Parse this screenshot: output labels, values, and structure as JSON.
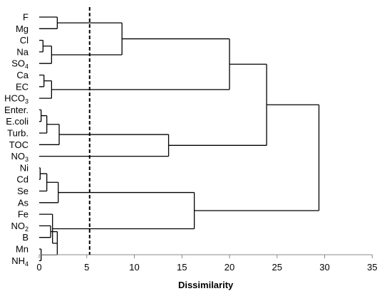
{
  "chart_data": {
    "type": "dendrogram",
    "title": "",
    "xlabel": "Dissimilarity",
    "xlim": [
      0,
      35
    ],
    "x_ticks": [
      "0",
      "5",
      "10",
      "15",
      "20",
      "25",
      "30",
      "35"
    ],
    "cut_line": 5.3,
    "leaves": [
      {
        "id": "F",
        "label": "F",
        "sub": ""
      },
      {
        "id": "Mg",
        "label": "Mg",
        "sub": ""
      },
      {
        "id": "Cl",
        "label": "Cl",
        "sub": ""
      },
      {
        "id": "Na",
        "label": "Na",
        "sub": ""
      },
      {
        "id": "SO4",
        "label": "SO",
        "sub": "4"
      },
      {
        "id": "Ca",
        "label": "Ca",
        "sub": ""
      },
      {
        "id": "EC",
        "label": "EC",
        "sub": ""
      },
      {
        "id": "HCO3",
        "label": "HCO",
        "sub": "3"
      },
      {
        "id": "Enter",
        "label": "Enter.",
        "sub": ""
      },
      {
        "id": "Ecoli",
        "label": "E.coli",
        "sub": ""
      },
      {
        "id": "Turb",
        "label": "Turb.",
        "sub": ""
      },
      {
        "id": "TOC",
        "label": "TOC",
        "sub": ""
      },
      {
        "id": "NO3",
        "label": "NO",
        "sub": "3"
      },
      {
        "id": "Ni",
        "label": "Ni",
        "sub": ""
      },
      {
        "id": "Cd",
        "label": "Cd",
        "sub": ""
      },
      {
        "id": "Se",
        "label": "Se",
        "sub": ""
      },
      {
        "id": "As",
        "label": "As",
        "sub": ""
      },
      {
        "id": "Fe",
        "label": "Fe",
        "sub": ""
      },
      {
        "id": "NO2",
        "label": "NO",
        "sub": "2"
      },
      {
        "id": "B",
        "label": "B",
        "sub": ""
      },
      {
        "id": "Mn",
        "label": "Mn",
        "sub": ""
      },
      {
        "id": "NH4",
        "label": "NH",
        "sub": "4"
      }
    ],
    "merges": [
      {
        "id": "m1",
        "children": [
          "F",
          "Mg"
        ],
        "height": 1.9
      },
      {
        "id": "m2",
        "children": [
          "Cl",
          "Na"
        ],
        "height": 0.4
      },
      {
        "id": "m3",
        "children": [
          "m2",
          "SO4"
        ],
        "height": 1.3
      },
      {
        "id": "m4",
        "children": [
          "m1",
          "m3"
        ],
        "height": 8.7
      },
      {
        "id": "m5",
        "children": [
          "Ca",
          "EC"
        ],
        "height": 0.5
      },
      {
        "id": "m6",
        "children": [
          "m5",
          "HCO3"
        ],
        "height": 1.3
      },
      {
        "id": "m7",
        "children": [
          "m4",
          "m6"
        ],
        "height": 20.0
      },
      {
        "id": "m8",
        "children": [
          "Enter",
          "Ecoli"
        ],
        "height": 0.2
      },
      {
        "id": "m9",
        "children": [
          "m8",
          "Turb"
        ],
        "height": 0.8
      },
      {
        "id": "m10",
        "children": [
          "m9",
          "TOC"
        ],
        "height": 2.1
      },
      {
        "id": "m11",
        "children": [
          "m10",
          "NO3"
        ],
        "height": 13.6
      },
      {
        "id": "m12",
        "children": [
          "m7",
          "m11"
        ],
        "height": 23.9
      },
      {
        "id": "m13",
        "children": [
          "Ni",
          "Cd"
        ],
        "height": 0.1
      },
      {
        "id": "m14",
        "children": [
          "m13",
          "Se"
        ],
        "height": 0.8
      },
      {
        "id": "m15",
        "children": [
          "m14",
          "As"
        ],
        "height": 2.0
      },
      {
        "id": "m16",
        "children": [
          "NO2",
          "B"
        ],
        "height": 1.2
      },
      {
        "id": "m17",
        "children": [
          "Mn",
          "NH4"
        ],
        "height": 0.2
      },
      {
        "id": "m18",
        "children": [
          "m16",
          "m17"
        ],
        "height": 1.9
      },
      {
        "id": "m19",
        "children": [
          "Fe",
          "m18"
        ],
        "height": 1.4
      },
      {
        "id": "m20",
        "children": [
          "m15",
          "m19"
        ],
        "height": 16.3
      },
      {
        "id": "m21",
        "children": [
          "m12",
          "m20"
        ],
        "height": 29.4
      }
    ]
  }
}
